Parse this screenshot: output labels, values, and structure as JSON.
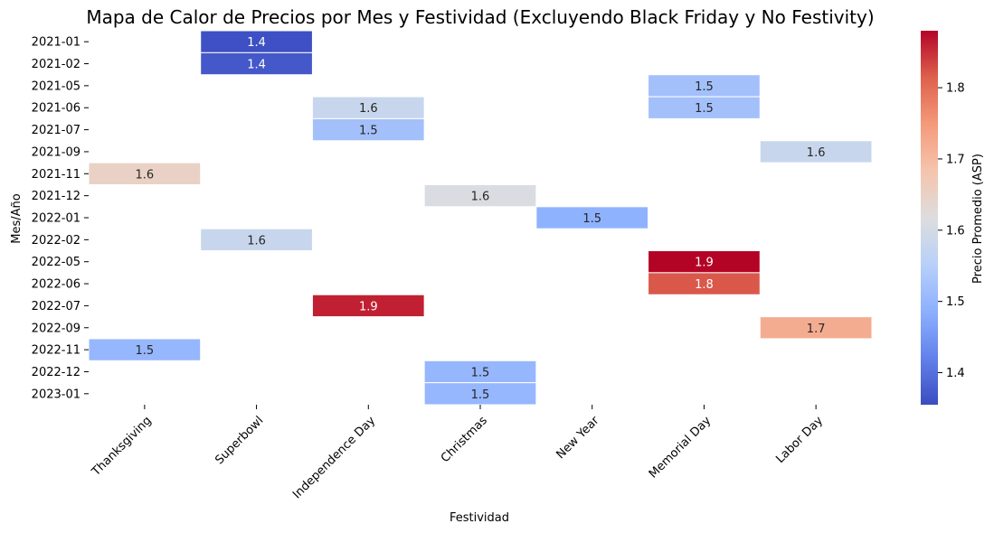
{
  "chart_data": {
    "type": "heatmap",
    "title": "Mapa de Calor de Precios por Mes y Festividad (Excluyendo Black Friday y No Festivity)",
    "xlabel": "Festividad",
    "ylabel": "Mes/Año",
    "x_categories": [
      "Thanksgiving",
      "Superbowl",
      "Independence Day",
      "Christmas",
      "New Year",
      "Memorial Day",
      "Labor Day"
    ],
    "y_categories": [
      "2021-01",
      "2021-02",
      "2021-05",
      "2021-06",
      "2021-07",
      "2021-09",
      "2021-11",
      "2021-12",
      "2022-01",
      "2022-02",
      "2022-05",
      "2022-06",
      "2022-07",
      "2022-09",
      "2022-11",
      "2022-12",
      "2023-01"
    ],
    "cells": [
      {
        "row": "2021-01",
        "col": "Superbowl",
        "value": 1.36,
        "label": "1.4"
      },
      {
        "row": "2021-02",
        "col": "Superbowl",
        "value": 1.37,
        "label": "1.4"
      },
      {
        "row": "2021-05",
        "col": "Memorial Day",
        "value": 1.52,
        "label": "1.5"
      },
      {
        "row": "2021-06",
        "col": "Independence Day",
        "value": 1.58,
        "label": "1.6"
      },
      {
        "row": "2021-06",
        "col": "Memorial Day",
        "value": 1.52,
        "label": "1.5"
      },
      {
        "row": "2021-07",
        "col": "Independence Day",
        "value": 1.52,
        "label": "1.5"
      },
      {
        "row": "2021-09",
        "col": "Labor Day",
        "value": 1.58,
        "label": "1.6"
      },
      {
        "row": "2021-11",
        "col": "Thanksgiving",
        "value": 1.65,
        "label": "1.6"
      },
      {
        "row": "2021-12",
        "col": "Christmas",
        "value": 1.61,
        "label": "1.6"
      },
      {
        "row": "2022-01",
        "col": "New Year",
        "value": 1.49,
        "label": "1.5"
      },
      {
        "row": "2022-02",
        "col": "Superbowl",
        "value": 1.58,
        "label": "1.6"
      },
      {
        "row": "2022-05",
        "col": "Memorial Day",
        "value": 1.88,
        "label": "1.9"
      },
      {
        "row": "2022-06",
        "col": "Memorial Day",
        "value": 1.82,
        "label": "1.8"
      },
      {
        "row": "2022-07",
        "col": "Independence Day",
        "value": 1.86,
        "label": "1.9"
      },
      {
        "row": "2022-09",
        "col": "Labor Day",
        "value": 1.72,
        "label": "1.7"
      },
      {
        "row": "2022-11",
        "col": "Thanksgiving",
        "value": 1.5,
        "label": "1.5"
      },
      {
        "row": "2022-12",
        "col": "Christmas",
        "value": 1.5,
        "label": "1.5"
      },
      {
        "row": "2023-01",
        "col": "Christmas",
        "value": 1.5,
        "label": "1.5"
      }
    ],
    "colorbar": {
      "label": "Precio Promedio (ASP)",
      "range": [
        1.355,
        1.88
      ],
      "ticks": [
        1.4,
        1.5,
        1.6,
        1.7,
        1.8
      ],
      "colormap": "coolwarm"
    }
  }
}
